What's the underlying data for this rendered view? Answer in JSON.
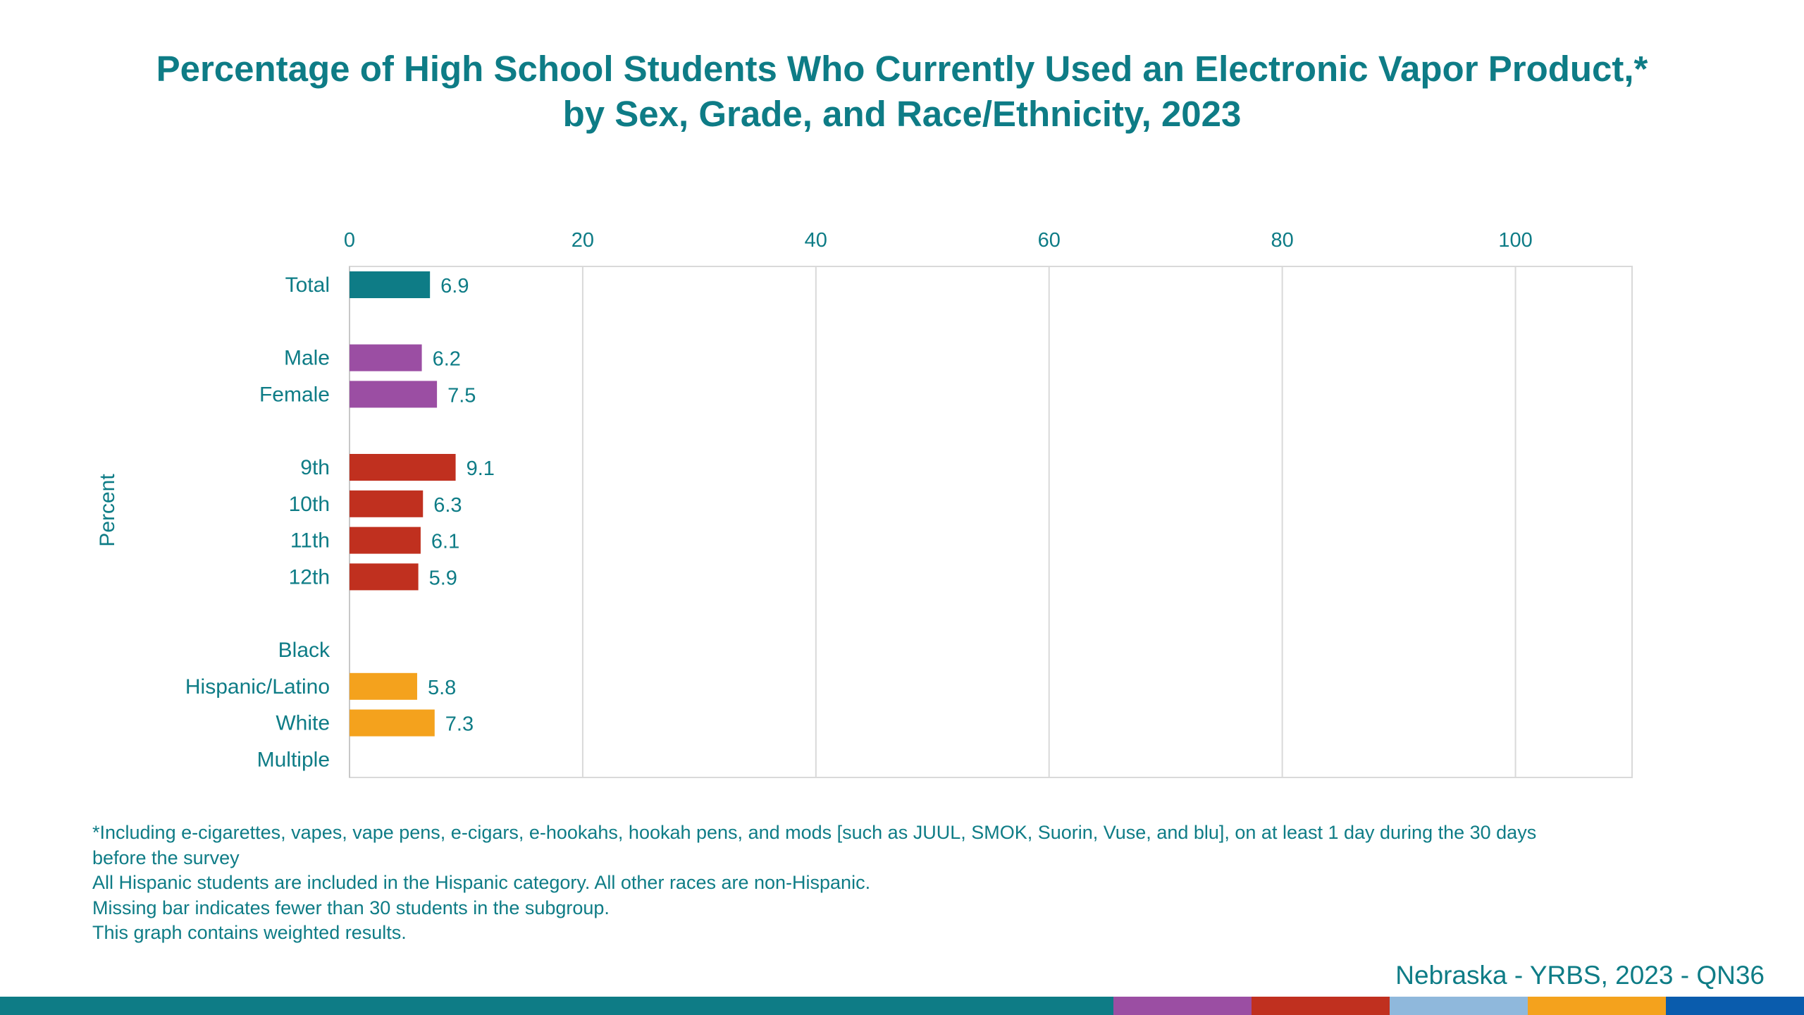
{
  "title": {
    "line1": "Percentage of High School Students Who Currently Used an Electronic Vapor Product,*",
    "line2": "by Sex, Grade, and Race/Ethnicity, 2023"
  },
  "chart_data": {
    "type": "bar",
    "orientation": "horizontal",
    "title": "Percentage of High School Students Who Currently Used an Electronic Vapor Product,* by Sex, Grade, and Race/Ethnicity, 2023",
    "ylabel": "Percent",
    "xlim": [
      0,
      110
    ],
    "xticks": [
      "0",
      "20",
      "40",
      "60",
      "80",
      "100"
    ],
    "xtick_values": [
      0,
      20,
      40,
      60,
      80,
      100
    ],
    "grid": true,
    "x_axis_position": "top",
    "categories": [
      "Total",
      "Male",
      "Female",
      "9th",
      "10th",
      "11th",
      "12th",
      "Black",
      "Hispanic/Latino",
      "White",
      "Multiple"
    ],
    "rows": [
      {
        "label": "Total",
        "value": 6.9,
        "display": "6.9",
        "color": "#0e7c86",
        "slot": 0
      },
      {
        "label": "Male",
        "value": 6.2,
        "display": "6.2",
        "color": "#9b4ea3",
        "slot": 2
      },
      {
        "label": "Female",
        "value": 7.5,
        "display": "7.5",
        "color": "#9b4ea3",
        "slot": 3
      },
      {
        "label": "9th",
        "value": 9.1,
        "display": "9.1",
        "color": "#c0301f",
        "slot": 5
      },
      {
        "label": "10th",
        "value": 6.3,
        "display": "6.3",
        "color": "#c0301f",
        "slot": 6
      },
      {
        "label": "11th",
        "value": 6.1,
        "display": "6.1",
        "color": "#c0301f",
        "slot": 7
      },
      {
        "label": "12th",
        "value": 5.9,
        "display": "5.9",
        "color": "#c0301f",
        "slot": 8
      },
      {
        "label": "Black",
        "value": null,
        "display": "",
        "color": "#f4a21d",
        "slot": 10
      },
      {
        "label": "Hispanic/Latino",
        "value": 5.8,
        "display": "5.8",
        "color": "#f4a21d",
        "slot": 11
      },
      {
        "label": "White",
        "value": 7.3,
        "display": "7.3",
        "color": "#f4a21d",
        "slot": 12
      },
      {
        "label": "Multiple",
        "value": null,
        "display": "",
        "color": "#f4a21d",
        "slot": 13
      }
    ]
  },
  "footnotes": [
    "*Including e-cigarettes, vapes, vape pens, e-cigars, e-hookahs, hookah pens, and mods [such as JUUL, SMOK, Suorin, Vuse, and blu], on at least 1 day during the 30 days",
    "before the survey",
    "All Hispanic students are included in the Hispanic category.  All other races are non-Hispanic.",
    "Missing bar indicates fewer than 30 students in the subgroup.",
    "This graph contains weighted results."
  ],
  "source": "Nebraska - YRBS, 2023 - QN36",
  "colors": {
    "teal": "#0e7c86",
    "purple": "#9b4ea3",
    "red": "#c0301f",
    "light_blue": "#8fb8dc",
    "orange": "#f4a21d",
    "blue": "#0a5cad"
  },
  "bottom_strip": [
    "#0e7c86",
    "#9b4ea3",
    "#c0301f",
    "#8fb8dc",
    "#f4a21d",
    "#0a5cad"
  ]
}
